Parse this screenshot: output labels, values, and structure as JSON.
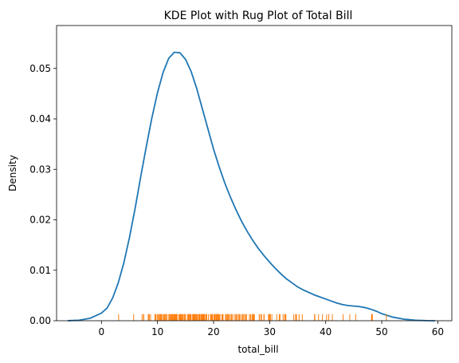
{
  "chart_data": {
    "type": "line",
    "title": "KDE Plot with Rug Plot of Total Bill",
    "xlabel": "total_bill",
    "ylabel": "Density",
    "xlim": [
      -8.0,
      62.5
    ],
    "ylim": [
      0,
      0.0585
    ],
    "grid": false,
    "xticks": [
      0,
      10,
      20,
      30,
      40,
      50,
      60
    ],
    "xtick_labels": [
      "0",
      "10",
      "20",
      "30",
      "40",
      "50",
      "60"
    ],
    "yticks": [
      0.0,
      0.01,
      0.02,
      0.03,
      0.04,
      0.05
    ],
    "ytick_labels": [
      "0.00",
      "0.01",
      "0.02",
      "0.03",
      "0.04",
      "0.05"
    ],
    "series": [
      {
        "kind": "kde",
        "color": "#1f77b4",
        "x": [
          -6,
          -4,
          -2,
          0,
          1,
          2,
          3,
          4,
          5,
          6,
          7,
          8,
          9,
          10,
          11,
          12,
          13,
          14,
          15,
          16,
          17,
          18,
          19,
          20,
          21,
          22,
          23,
          24,
          25,
          26,
          27,
          28,
          29,
          30,
          31,
          32,
          33,
          34,
          35,
          36,
          37,
          38,
          39,
          40,
          41,
          42,
          43,
          44,
          45,
          46,
          47,
          48,
          49,
          50,
          52,
          54,
          56,
          58,
          59.5
        ],
        "y": [
          1e-05,
          0.0001,
          0.0005,
          0.0015,
          0.0025,
          0.0045,
          0.0075,
          0.0115,
          0.0165,
          0.0222,
          0.0285,
          0.0345,
          0.0402,
          0.0452,
          0.0492,
          0.052,
          0.0532,
          0.0531,
          0.0518,
          0.0494,
          0.046,
          0.042,
          0.038,
          0.034,
          0.0305,
          0.0273,
          0.0245,
          0.022,
          0.0197,
          0.0177,
          0.0159,
          0.0143,
          0.0129,
          0.0116,
          0.0104,
          0.0093,
          0.0083,
          0.0075,
          0.0067,
          0.0061,
          0.0056,
          0.0051,
          0.0047,
          0.0043,
          0.0039,
          0.0035,
          0.0032,
          0.003,
          0.0029,
          0.0028,
          0.0026,
          0.0023,
          0.0019,
          0.0014,
          0.0007,
          0.0003,
          0.0001,
          2e-05,
          0.0
        ]
      },
      {
        "kind": "rug",
        "color": "#ff7f0e",
        "height": 0.0013,
        "x": [
          3.07,
          5.75,
          7.25,
          7.51,
          7.56,
          8.35,
          8.51,
          8.52,
          8.77,
          9.55,
          9.6,
          9.68,
          9.94,
          10.07,
          10.27,
          10.33,
          10.34,
          10.51,
          10.63,
          10.65,
          10.77,
          11.02,
          11.17,
          11.24,
          11.38,
          11.59,
          11.61,
          11.69,
          12.02,
          12.16,
          12.26,
          12.43,
          12.46,
          12.54,
          12.6,
          12.66,
          12.74,
          12.9,
          13.0,
          13.03,
          13.13,
          13.16,
          13.27,
          13.37,
          13.39,
          13.42,
          13.51,
          13.81,
          13.94,
          14.07,
          14.15,
          14.26,
          14.31,
          14.48,
          14.52,
          14.73,
          14.78,
          14.83,
          15.01,
          15.04,
          15.38,
          15.42,
          15.48,
          15.53,
          15.69,
          15.77,
          15.81,
          15.95,
          16.0,
          16.27,
          16.29,
          16.31,
          16.4,
          16.45,
          16.47,
          16.58,
          16.66,
          16.82,
          16.93,
          16.97,
          16.99,
          17.07,
          17.29,
          17.31,
          17.46,
          17.47,
          17.51,
          17.59,
          17.78,
          17.81,
          17.89,
          17.92,
          18.04,
          18.15,
          18.24,
          18.26,
          18.28,
          18.29,
          18.35,
          18.43,
          18.64,
          18.69,
          18.71,
          18.78,
          19.08,
          19.44,
          19.49,
          19.65,
          19.77,
          19.81,
          19.82,
          20.08,
          20.23,
          20.27,
          20.29,
          20.45,
          20.53,
          20.65,
          20.69,
          20.76,
          20.9,
          20.92,
          21.01,
          21.16,
          21.5,
          21.58,
          21.7,
          22.12,
          22.23,
          22.42,
          22.49,
          22.67,
          22.75,
          22.76,
          22.82,
          23.1,
          23.17,
          23.33,
          23.68,
          23.95,
          24.01,
          24.06,
          24.27,
          24.52,
          24.55,
          24.59,
          24.71,
          25.0,
          25.21,
          25.28,
          25.29,
          25.56,
          25.71,
          25.89,
          26.41,
          26.59,
          26.86,
          26.88,
          27.05,
          27.18,
          27.2,
          27.28,
          28.15,
          28.17,
          28.44,
          28.55,
          28.97,
          29.03,
          29.8,
          29.85,
          29.93,
          30.06,
          30.14,
          30.4,
          31.27,
          31.71,
          31.85,
          32.4,
          32.68,
          32.83,
          32.9,
          34.3,
          34.63,
          34.65,
          34.81,
          35.26,
          35.83,
          38.01,
          38.07,
          38.73,
          39.42,
          40.17,
          40.55,
          41.19,
          43.11,
          44.3,
          45.35,
          48.17,
          48.27,
          48.33,
          50.81
        ]
      }
    ]
  }
}
